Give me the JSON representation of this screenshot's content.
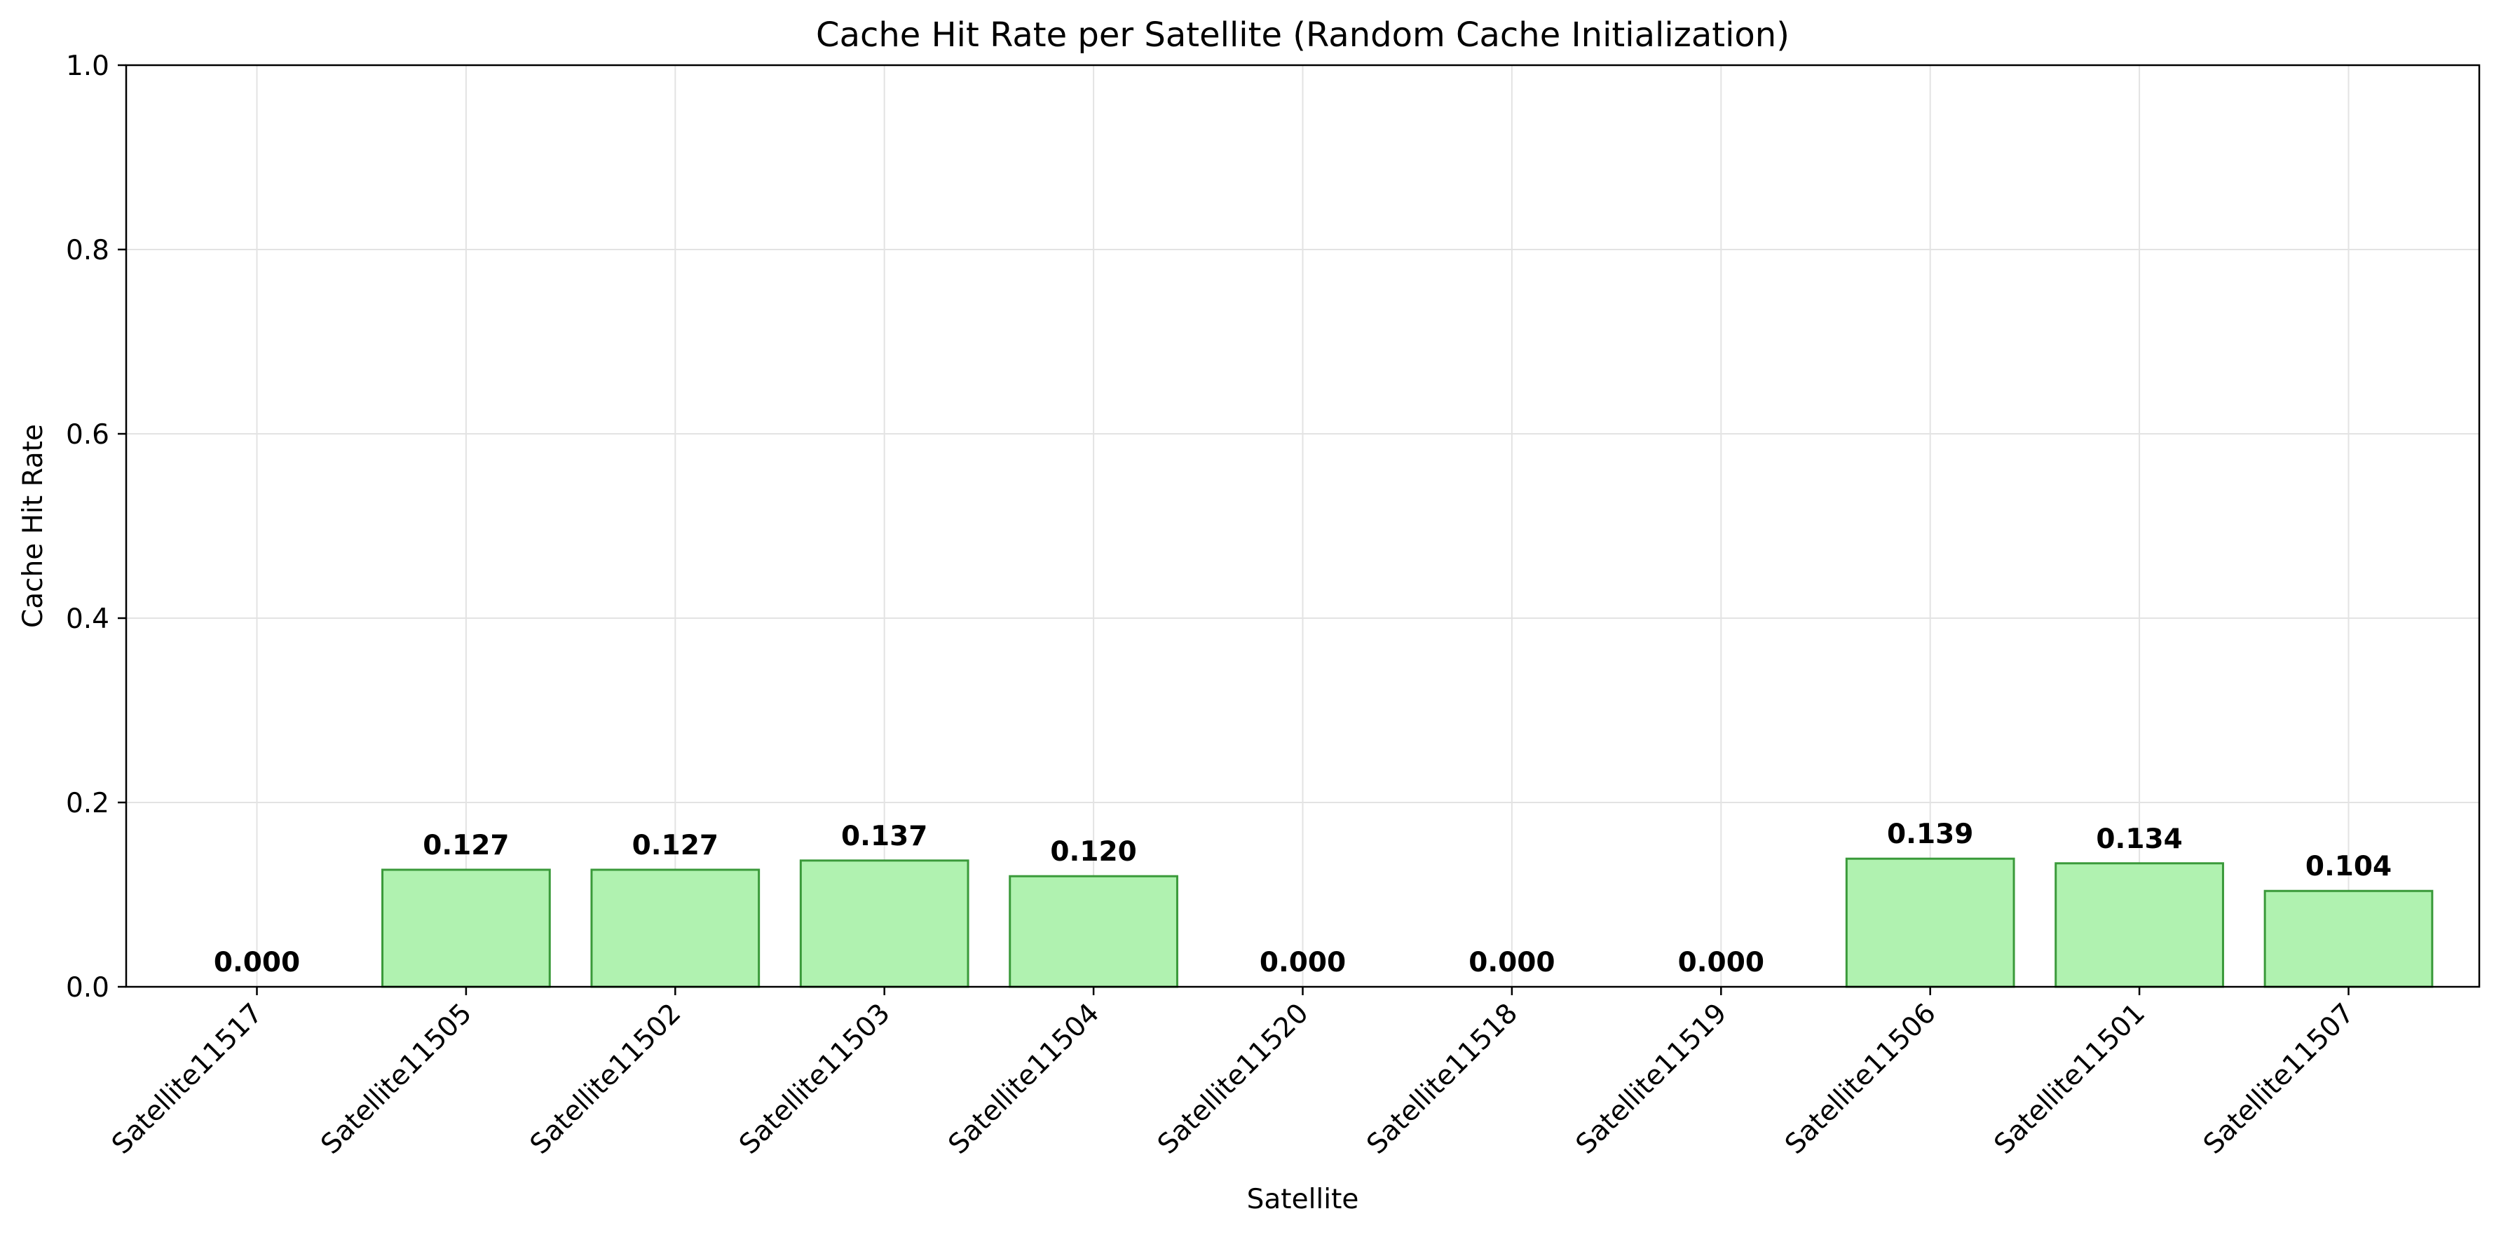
{
  "chart_data": {
    "type": "bar",
    "title": "Cache Hit Rate per Satellite (Random Cache Initialization)",
    "xlabel": "Satellite",
    "ylabel": "Cache Hit Rate",
    "ylim": [
      0,
      1.0
    ],
    "yticks": [
      0.0,
      0.2,
      0.4,
      0.6,
      0.8,
      1.0
    ],
    "ytick_labels": [
      "0.0",
      "0.2",
      "0.4",
      "0.6",
      "0.8",
      "1.0"
    ],
    "categories": [
      "Satellite11517",
      "Satellite11505",
      "Satellite11502",
      "Satellite11503",
      "Satellite11504",
      "Satellite11520",
      "Satellite11518",
      "Satellite11519",
      "Satellite11506",
      "Satellite11501",
      "Satellite11507"
    ],
    "values": [
      0.0,
      0.127,
      0.127,
      0.137,
      0.12,
      0.0,
      0.0,
      0.0,
      0.139,
      0.134,
      0.104
    ],
    "value_labels": [
      "0.000",
      "0.127",
      "0.127",
      "0.137",
      "0.120",
      "0.000",
      "0.000",
      "0.000",
      "0.139",
      "0.134",
      "0.104"
    ],
    "grid": true,
    "colors": {
      "bar_fill": "#b0f2b0",
      "bar_edge": "#3a9a3a",
      "grid": "#e3e3e3",
      "axis": "#000000"
    }
  }
}
